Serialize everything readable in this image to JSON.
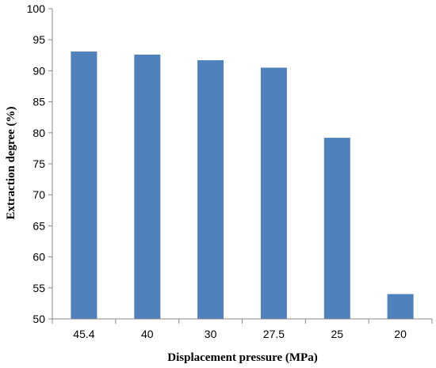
{
  "chart_data": {
    "type": "bar",
    "categories": [
      "45.4",
      "40",
      "30",
      "27.5",
      "25",
      "20"
    ],
    "series": [
      {
        "values": [
          93.1,
          92.6,
          91.7,
          90.5,
          79.2,
          54.0
        ]
      }
    ],
    "xlabel": "Displacement pressure (MPa)",
    "ylabel": "Extraction degree (%)",
    "ylim": [
      50,
      100
    ],
    "yticks": [
      "50",
      "55",
      "60",
      "65",
      "70",
      "75",
      "80",
      "85",
      "90",
      "95",
      "100"
    ],
    "grid": false,
    "legend": "none",
    "colors": {
      "bar": "#4f81bd",
      "axis": "#888888"
    }
  }
}
